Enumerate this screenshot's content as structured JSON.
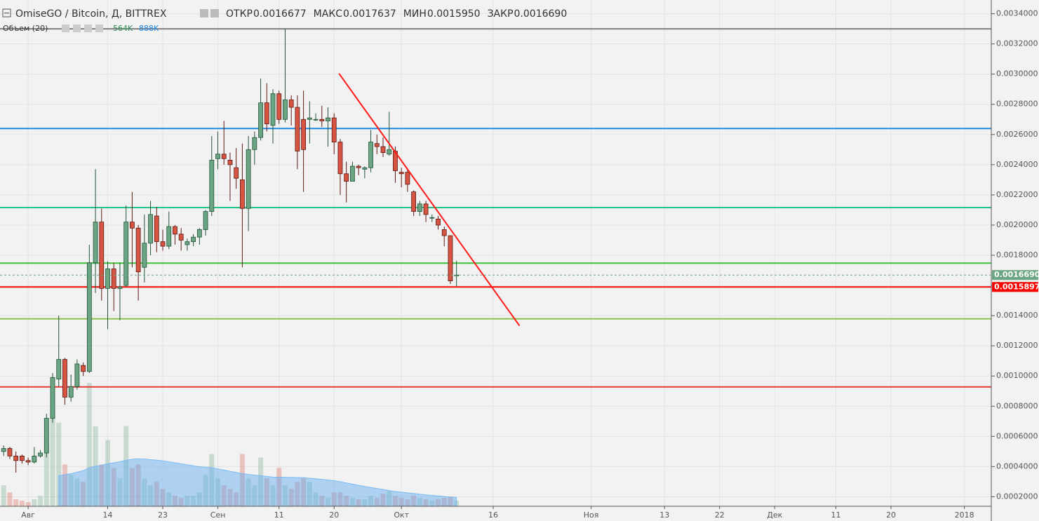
{
  "chart_data": {
    "type": "candlestick",
    "title": "OmiseGO / Bitcoin, Д, BITTREX",
    "ohlc_labels": [
      {
        "name": "ОТКР",
        "value": "0.0016677"
      },
      {
        "name": "МАКС",
        "value": "0.0017637"
      },
      {
        "name": "МИН",
        "value": "0.0015950"
      },
      {
        "name": "ЗАКР",
        "value": "0.0016690"
      }
    ],
    "volume_legend": {
      "name": "Объем (20)",
      "volume": "564K",
      "ma": "888K"
    },
    "x": [
      -4,
      -3,
      -2,
      -1,
      0,
      1,
      2,
      3,
      4,
      5,
      6,
      7,
      8,
      9,
      10,
      11,
      12,
      13,
      14,
      15,
      16,
      17,
      18,
      19,
      20,
      21,
      22,
      23,
      24,
      25,
      26,
      27,
      28,
      29,
      30,
      31,
      32,
      33,
      34,
      35,
      36,
      37,
      38,
      39,
      40,
      41,
      42,
      43,
      44,
      45,
      46,
      47,
      48,
      49,
      50,
      51,
      52,
      53,
      54,
      55,
      56,
      57,
      58,
      59,
      60,
      61,
      62,
      63,
      64,
      65,
      66,
      67,
      68,
      69,
      70
    ],
    "open": [
      0.0005,
      0.00052,
      0.00047,
      0.00047,
      0.00044,
      0.00043,
      0.00047,
      0.00049,
      0.00072,
      0.00098,
      0.00111,
      0.00086,
      0.00093,
      0.00107,
      0.00103,
      0.00175,
      0.00202,
      0.00158,
      0.00171,
      0.00158,
      0.0016,
      0.00202,
      0.00198,
      0.00172,
      0.00188,
      0.00206,
      0.00189,
      0.00186,
      0.00199,
      0.00194,
      0.00187,
      0.00189,
      0.00192,
      0.00197,
      0.00209,
      0.00244,
      0.00247,
      0.00243,
      0.00238,
      0.0023,
      0.00211,
      0.0025,
      0.00258,
      0.00281,
      0.00266,
      0.00287,
      0.0027,
      0.00283,
      0.00278,
      0.0027,
      0.0027,
      0.0027,
      0.0027,
      0.00269,
      0.00271,
      0.00255,
      0.00234,
      0.00229,
      0.00239,
      0.00237,
      0.00238,
      0.00254,
      0.00252,
      0.00247,
      0.00249,
      0.00235,
      0.00235,
      0.00222,
      0.00209,
      0.00214,
      0.00205,
      0.00204,
      0.00197,
      0.00193,
      0.0016677
    ],
    "high": [
      0.00054,
      0.00053,
      0.0005,
      0.00048,
      0.00046,
      0.00053,
      0.00051,
      0.00075,
      0.00102,
      0.0014,
      0.00112,
      0.00101,
      0.00111,
      0.00109,
      0.00187,
      0.00237,
      0.00211,
      0.00176,
      0.00175,
      0.00175,
      0.00213,
      0.00222,
      0.002,
      0.00207,
      0.00216,
      0.00212,
      0.00197,
      0.00209,
      0.002,
      0.00198,
      0.00191,
      0.00194,
      0.00198,
      0.0021,
      0.00259,
      0.00262,
      0.00269,
      0.00248,
      0.00251,
      0.00254,
      0.00259,
      0.00262,
      0.00297,
      0.00294,
      0.0029,
      0.00289,
      0.0033,
      0.00286,
      0.00286,
      0.00289,
      0.00282,
      0.00274,
      0.00279,
      0.00278,
      0.00274,
      0.00257,
      0.00242,
      0.00242,
      0.0024,
      0.00239,
      0.00263,
      0.0026,
      0.00258,
      0.00275,
      0.00252,
      0.00238,
      0.00237,
      0.00223,
      0.00216,
      0.00216,
      0.00207,
      0.00206,
      0.00199,
      0.00193,
      0.0017637
    ],
    "low": [
      0.00047,
      0.00045,
      0.00036,
      0.00042,
      0.00041,
      0.00042,
      0.00046,
      0.00046,
      0.00069,
      0.00093,
      0.00081,
      0.00083,
      0.00091,
      0.001,
      0.00102,
      0.00155,
      0.0015,
      0.00131,
      0.00143,
      0.00137,
      0.00159,
      0.00172,
      0.0015,
      0.00162,
      0.0018,
      0.00182,
      0.00183,
      0.00184,
      0.00187,
      0.00183,
      0.00183,
      0.00186,
      0.00187,
      0.00193,
      0.00206,
      0.00237,
      0.0024,
      0.00216,
      0.00224,
      0.00172,
      0.00196,
      0.0024,
      0.00256,
      0.00262,
      0.00254,
      0.00267,
      0.00268,
      0.00266,
      0.00237,
      0.00222,
      0.00254,
      0.00269,
      0.00265,
      0.00252,
      0.00247,
      0.0022,
      0.00215,
      0.00229,
      0.00233,
      0.00231,
      0.00235,
      0.00247,
      0.00245,
      0.00246,
      0.00228,
      0.00225,
      0.00222,
      0.00206,
      0.00206,
      0.00202,
      0.00202,
      0.00197,
      0.00186,
      0.00161,
      0.001595
    ],
    "close": [
      0.00052,
      0.00047,
      0.00044,
      0.00044,
      0.00043,
      0.00047,
      0.00049,
      0.00072,
      0.00099,
      0.00111,
      0.00086,
      0.00093,
      0.00108,
      0.00103,
      0.00175,
      0.00202,
      0.00158,
      0.00171,
      0.00158,
      0.00159,
      0.00202,
      0.00198,
      0.00169,
      0.00188,
      0.00207,
      0.00189,
      0.00186,
      0.00199,
      0.00194,
      0.0019,
      0.00189,
      0.00192,
      0.00197,
      0.00209,
      0.00243,
      0.00247,
      0.00244,
      0.0024,
      0.00231,
      0.00211,
      0.0025,
      0.00258,
      0.00281,
      0.00267,
      0.00287,
      0.0027,
      0.00283,
      0.00278,
      0.00249,
      0.0025,
      0.00271,
      0.0027,
      0.00269,
      0.00271,
      0.00255,
      0.00234,
      0.00229,
      0.00239,
      0.00238,
      0.00238,
      0.00255,
      0.00252,
      0.00248,
      0.0025,
      0.00236,
      0.00234,
      0.00227,
      0.00209,
      0.00214,
      0.00207,
      0.00205,
      0.002,
      0.00193,
      0.00163,
      0.001669
    ],
    "volume": [
      2115,
      1410,
      705,
      564,
      423,
      705,
      1058,
      6345,
      9870,
      8460,
      4230,
      3173,
      2820,
      2468,
      12479,
      8108,
      4230,
      6698,
      3878,
      2820,
      8108,
      3878,
      4230,
      2820,
      2115,
      2468,
      1763,
      1410,
      1058,
      846,
      1058,
      1058,
      1410,
      3173,
      5288,
      2820,
      2115,
      1763,
      1410,
      5288,
      2820,
      2115,
      4935,
      2820,
      2115,
      3878,
      2115,
      1763,
      2468,
      2820,
      2468,
      1410,
      1058,
      846,
      1410,
      1410,
      1058,
      846,
      705,
      705,
      1058,
      846,
      1269,
      1551,
      1058,
      846,
      705,
      1058,
      846,
      705,
      564,
      705,
      846,
      987,
      564
    ],
    "volume_ma": [
      null,
      null,
      null,
      null,
      null,
      null,
      null,
      null,
      null,
      3100,
      3200,
      3300,
      3450,
      3600,
      3900,
      4050,
      4150,
      4300,
      4400,
      4500,
      4650,
      4750,
      4800,
      4780,
      4720,
      4660,
      4600,
      4500,
      4400,
      4300,
      4200,
      4100,
      4000,
      3950,
      3900,
      3780,
      3660,
      3540,
      3420,
      3300,
      3230,
      3160,
      3090,
      3020,
      2950,
      2940,
      2930,
      2920,
      2910,
      2900,
      2840,
      2780,
      2720,
      2660,
      2600,
      2480,
      2360,
      2240,
      2120,
      2000,
      1900,
      1800,
      1700,
      1600,
      1500,
      1430,
      1360,
      1290,
      1220,
      1150,
      1100,
      1050,
      990,
      940,
      888
    ],
    "volume_lim": [
      0,
      51200
    ],
    "up_color": "#6ba583",
    "down_color": "#d75442",
    "xlim": [
      -4.6,
      157.4
    ],
    "xticks": [
      {
        "value": 0,
        "label": "Авг"
      },
      {
        "value": 13,
        "label": "14"
      },
      {
        "value": 22,
        "label": "23"
      },
      {
        "value": 31,
        "label": "Сен"
      },
      {
        "value": 41,
        "label": "11"
      },
      {
        "value": 50,
        "label": "20"
      },
      {
        "value": 61,
        "label": "Окт"
      },
      {
        "value": 76,
        "label": "16"
      },
      {
        "value": 92,
        "label": "Ноя"
      },
      {
        "value": 104,
        "label": "13"
      },
      {
        "value": 113,
        "label": "22"
      },
      {
        "value": 122,
        "label": "Дек"
      },
      {
        "value": 132,
        "label": "11"
      },
      {
        "value": 141,
        "label": "20"
      },
      {
        "value": 153,
        "label": "2018"
      }
    ],
    "ylim": [
      0.000137,
      0.003491
    ],
    "yticks": [
      {
        "value": 0.0002,
        "label": "0.0002000"
      },
      {
        "value": 0.0004,
        "label": "0.0004000"
      },
      {
        "value": 0.0006,
        "label": "0.0006000"
      },
      {
        "value": 0.0008,
        "label": "0.0008000"
      },
      {
        "value": 0.001,
        "label": "0.0010000"
      },
      {
        "value": 0.0012,
        "label": "0.0012000"
      },
      {
        "value": 0.0014,
        "label": "0.0014000"
      },
      {
        "value": 0.0016,
        "label": "0.0016000"
      },
      {
        "value": 0.0018,
        "label": "0.0018000"
      },
      {
        "value": 0.002,
        "label": "0.0020000"
      },
      {
        "value": 0.0022,
        "label": "0.0022000"
      },
      {
        "value": 0.0024,
        "label": "0.0024000"
      },
      {
        "value": 0.0026,
        "label": "0.0026000"
      },
      {
        "value": 0.0028,
        "label": "0.0028000"
      },
      {
        "value": 0.003,
        "label": "0.0030000"
      },
      {
        "value": 0.0032,
        "label": "0.0032000"
      },
      {
        "value": 0.0034,
        "label": "0.0034000"
      }
    ],
    "grid": true,
    "levels": [
      {
        "value": 0.0033,
        "color": "#808080"
      },
      {
        "value": 0.00264,
        "color": "#1e88e5"
      },
      {
        "value": 0.002116,
        "color": "#26c281"
      },
      {
        "value": 0.001748,
        "color": "#3cc13b"
      },
      {
        "value": 0.001379,
        "color": "#8bc34a"
      },
      {
        "value": 0.000928,
        "color": "#e53935"
      },
      {
        "value": 0.0015897,
        "color": "#ff0000"
      }
    ],
    "price_tags": [
      {
        "value": 0.001669,
        "label": "0.0016690",
        "color": "#6ba583",
        "dashed": true
      },
      {
        "value": 0.0015897,
        "label": "0.0015897",
        "color": "#ff0000"
      }
    ],
    "trendline": {
      "x": [
        50.8,
        80.3
      ],
      "y": [
        0.003004,
        0.001333
      ],
      "color": "#ff1a1a"
    }
  }
}
